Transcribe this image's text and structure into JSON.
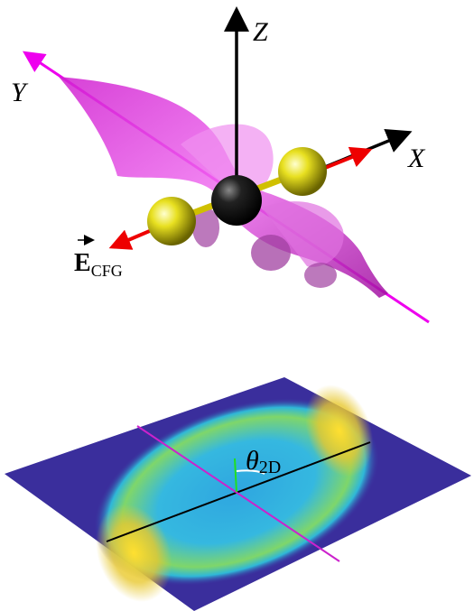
{
  "labels": {
    "z_axis": "Z",
    "y_axis": "Y",
    "x_axis": "X",
    "field": "E",
    "field_subscript": "CFG",
    "angle": "θ",
    "angle_subscript": "2D"
  }
}
